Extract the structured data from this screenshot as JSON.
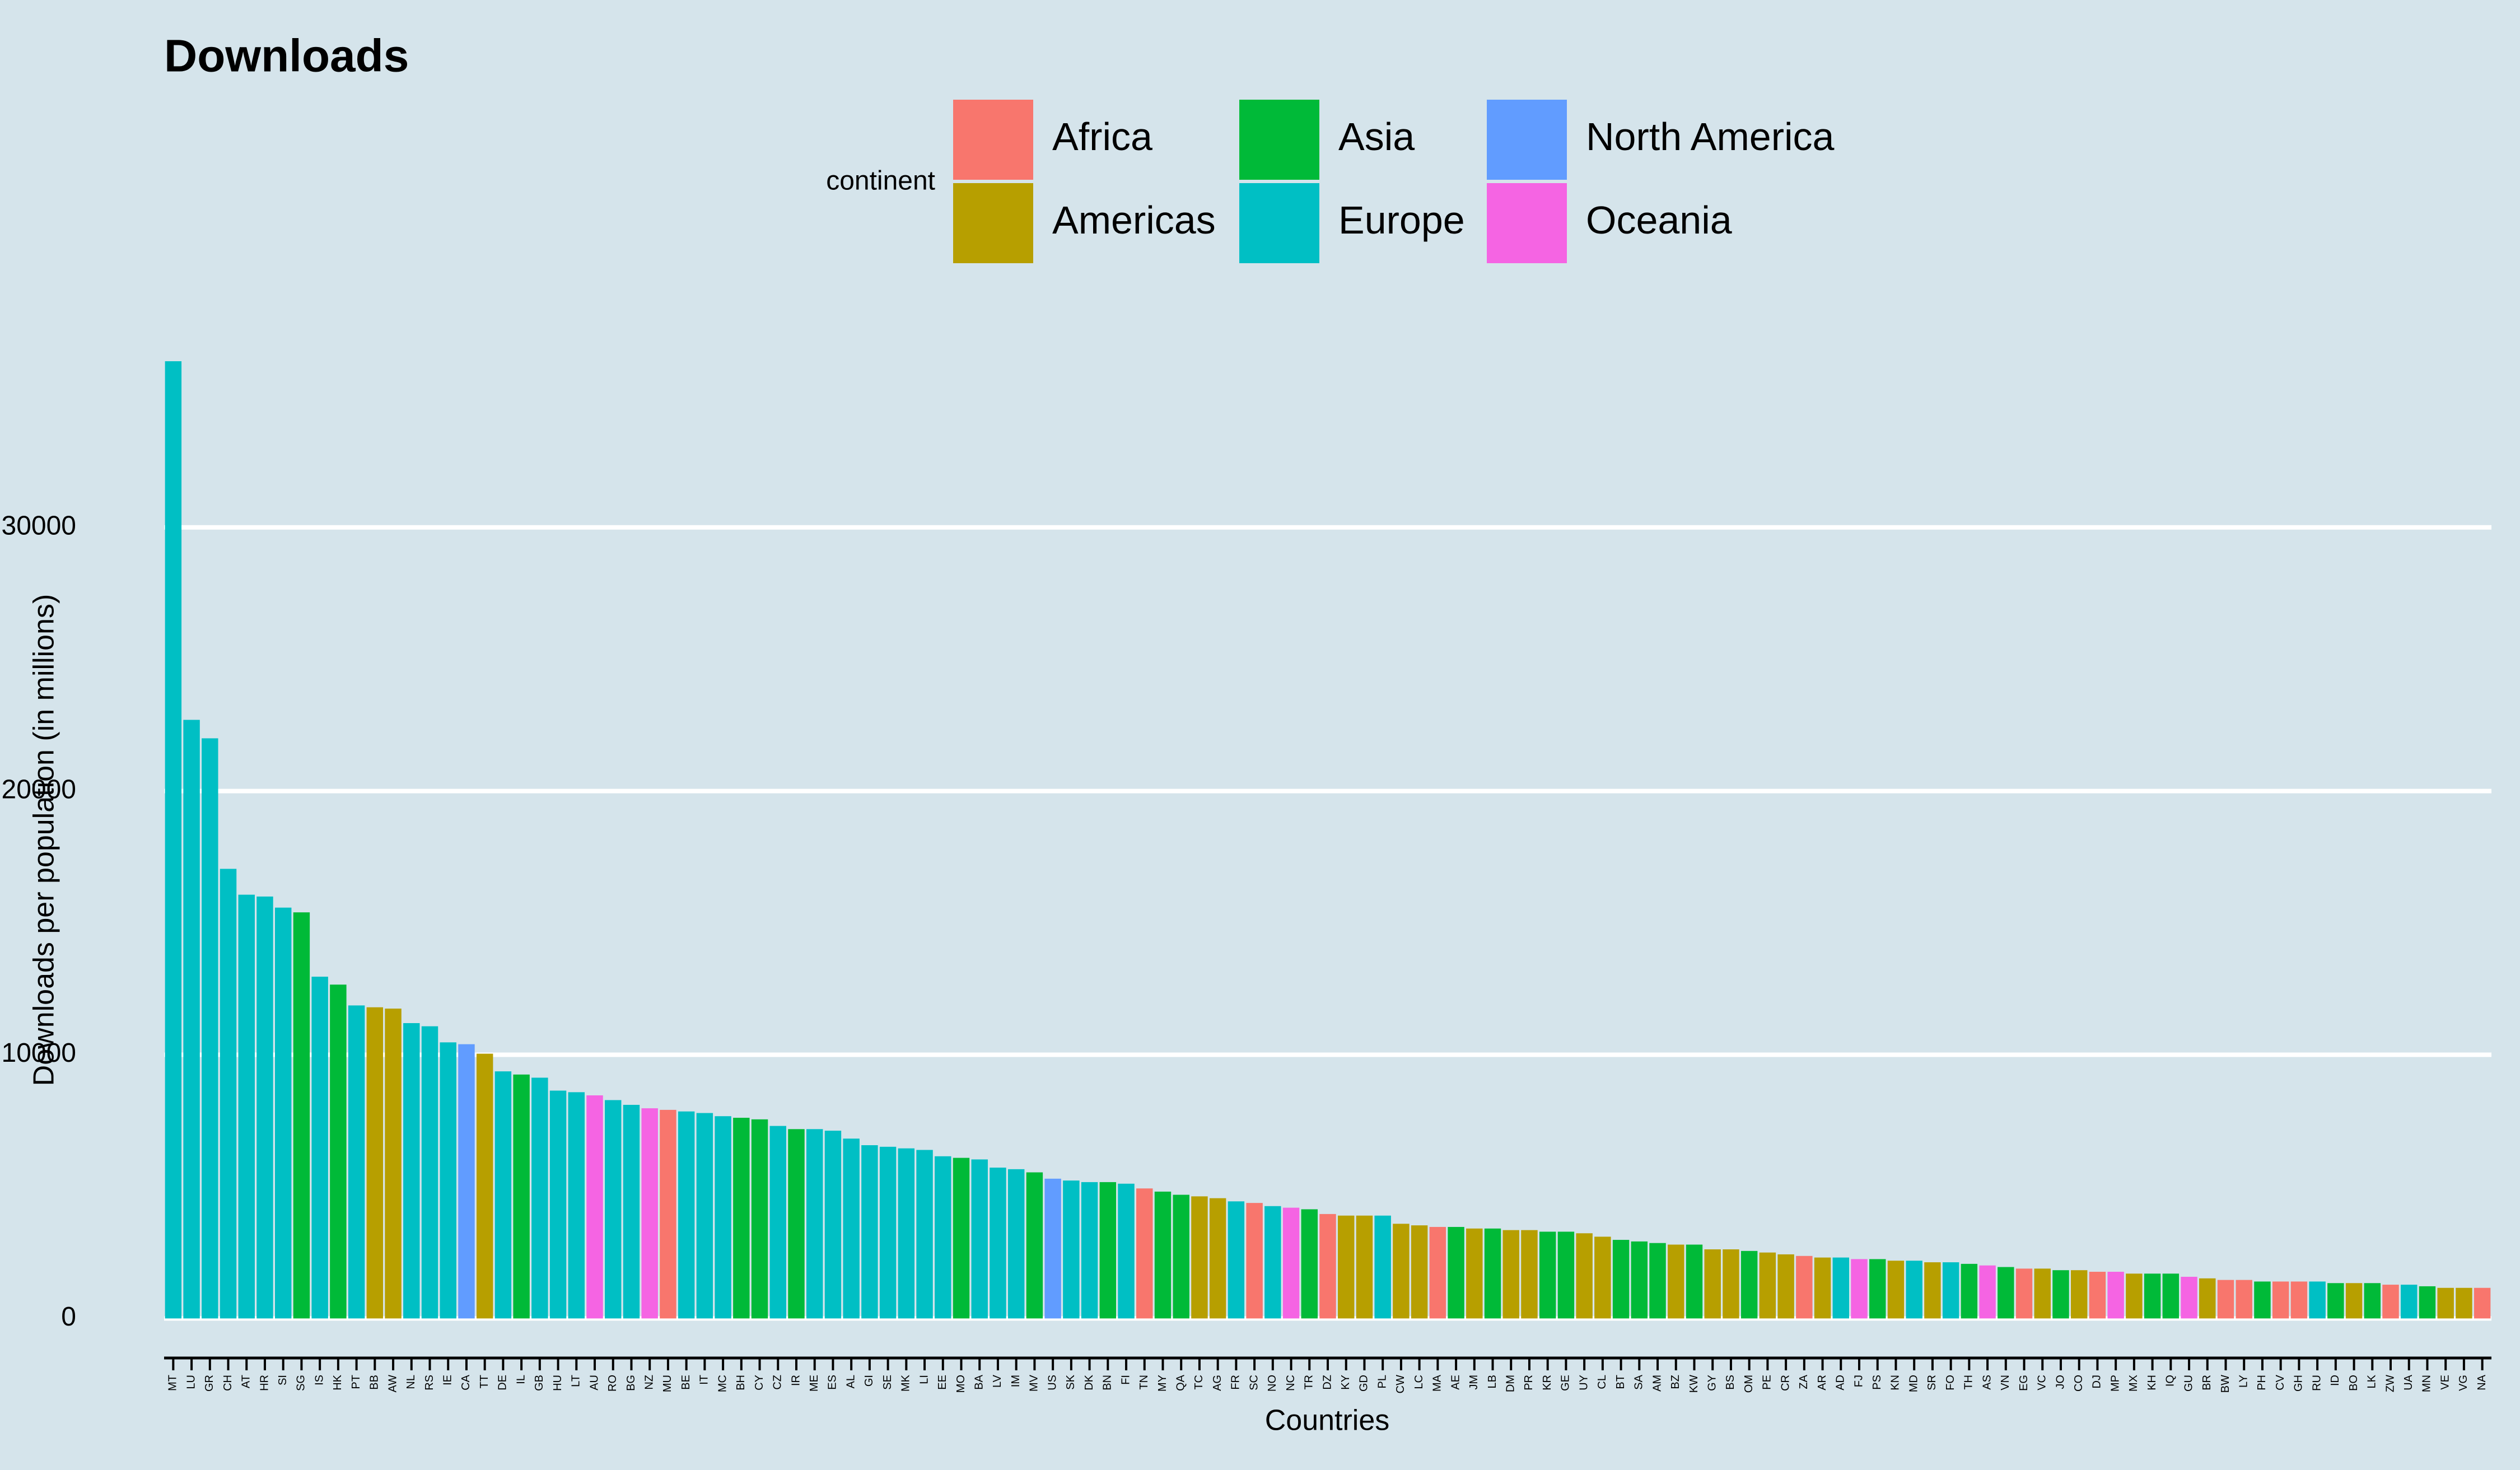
{
  "chart_data": {
    "type": "bar",
    "title": "Downloads",
    "x_label": "Countries",
    "y_label": "Downloads per population (in millions)",
    "legend": {
      "title": "continent",
      "items": [
        {
          "name": "Africa",
          "color": "#F8766D"
        },
        {
          "name": "Americas",
          "color": "#B79F00"
        },
        {
          "name": "Asia",
          "color": "#00BA38"
        },
        {
          "name": "Europe",
          "color": "#00BFC4"
        },
        {
          "name": "North America",
          "color": "#619CFF"
        },
        {
          "name": "Oceania",
          "color": "#F564E3"
        }
      ]
    },
    "categories": [
      "MT",
      "LU",
      "GR",
      "CH",
      "AT",
      "HR",
      "SI",
      "SG",
      "IS",
      "HK",
      "PT",
      "BB",
      "AW",
      "NL",
      "RS",
      "IE",
      "CA",
      "TT",
      "DE",
      "IL",
      "GB",
      "HU",
      "LT",
      "AU",
      "RO",
      "BG",
      "NZ",
      "MU",
      "BE",
      "IT",
      "MC",
      "BH",
      "CY",
      "CZ",
      "IR",
      "ME",
      "ES",
      "AL",
      "GI",
      "SE",
      "MK",
      "LI",
      "EE",
      "MO",
      "BA",
      "LV",
      "IM",
      "MV",
      "US",
      "SK",
      "DK",
      "BN",
      "FI",
      "TN",
      "MY",
      "QA",
      "TC",
      "AG",
      "FR",
      "SC",
      "NO",
      "NC",
      "TR",
      "DZ",
      "KY",
      "GD",
      "PL",
      "CW",
      "LC",
      "MA",
      "AE",
      "JM",
      "LB",
      "DM",
      "PR",
      "KR",
      "GE",
      "UY",
      "CL",
      "BT",
      "SA",
      "AM",
      "BZ",
      "KW",
      "GY",
      "BS",
      "OM",
      "PE",
      "CR",
      "ZA",
      "AR",
      "AD",
      "FJ",
      "PS",
      "KN",
      "MD",
      "SR",
      "FO",
      "TH",
      "AS",
      "VN",
      "EG",
      "VC",
      "JO",
      "CO",
      "DJ",
      "MP",
      "MX",
      "KH",
      "IQ",
      "GU",
      "BR",
      "BW",
      "LY",
      "PH",
      "CV",
      "GH",
      "RU",
      "ID",
      "BO",
      "LK",
      "ZW",
      "UA",
      "MN",
      "VE",
      "VG",
      "NA"
    ],
    "continent": [
      "Europe",
      "Europe",
      "Europe",
      "Europe",
      "Europe",
      "Europe",
      "Europe",
      "Asia",
      "Europe",
      "Asia",
      "Europe",
      "Americas",
      "Americas",
      "Europe",
      "Europe",
      "Europe",
      "North America",
      "Americas",
      "Europe",
      "Asia",
      "Europe",
      "Europe",
      "Europe",
      "Oceania",
      "Europe",
      "Europe",
      "Oceania",
      "Africa",
      "Europe",
      "Europe",
      "Europe",
      "Asia",
      "Asia",
      "Europe",
      "Asia",
      "Europe",
      "Europe",
      "Europe",
      "Europe",
      "Europe",
      "Europe",
      "Europe",
      "Europe",
      "Asia",
      "Europe",
      "Europe",
      "Europe",
      "Asia",
      "North America",
      "Europe",
      "Europe",
      "Asia",
      "Europe",
      "Africa",
      "Asia",
      "Asia",
      "Americas",
      "Americas",
      "Europe",
      "Africa",
      "Europe",
      "Oceania",
      "Asia",
      "Africa",
      "Americas",
      "Americas",
      "Europe",
      "Americas",
      "Americas",
      "Africa",
      "Asia",
      "Americas",
      "Asia",
      "Americas",
      "Americas",
      "Asia",
      "Asia",
      "Americas",
      "Americas",
      "Asia",
      "Asia",
      "Asia",
      "Americas",
      "Asia",
      "Americas",
      "Americas",
      "Asia",
      "Americas",
      "Americas",
      "Africa",
      "Americas",
      "Europe",
      "Oceania",
      "Asia",
      "Americas",
      "Europe",
      "Americas",
      "Europe",
      "Asia",
      "Oceania",
      "Asia",
      "Africa",
      "Americas",
      "Asia",
      "Americas",
      "Africa",
      "Oceania",
      "Americas",
      "Asia",
      "Asia",
      "Oceania",
      "Americas",
      "Africa",
      "Africa",
      "Asia",
      "Africa",
      "Africa",
      "Europe",
      "Asia",
      "Americas",
      "Asia",
      "Africa",
      "Europe",
      "Asia",
      "Americas",
      "Americas",
      "Africa"
    ],
    "values": [
      36300,
      22700,
      22000,
      17050,
      16070,
      16000,
      15580,
      15400,
      12960,
      12660,
      11870,
      11800,
      11750,
      11200,
      11080,
      10470,
      10400,
      10040,
      9370,
      9250,
      9130,
      8640,
      8580,
      8460,
      8280,
      8100,
      7970,
      7910,
      7850,
      7790,
      7670,
      7610,
      7550,
      7300,
      7180,
      7180,
      7120,
      6820,
      6570,
      6510,
      6450,
      6390,
      6150,
      6090,
      6030,
      5720,
      5660,
      5540,
      5300,
      5230,
      5170,
      5170,
      5110,
      4930,
      4810,
      4690,
      4630,
      4560,
      4440,
      4380,
      4260,
      4200,
      4140,
      3960,
      3900,
      3900,
      3900,
      3590,
      3530,
      3470,
      3470,
      3410,
      3410,
      3350,
      3350,
      3290,
      3290,
      3230,
      3100,
      2980,
      2920,
      2860,
      2800,
      2800,
      2620,
      2620,
      2560,
      2500,
      2430,
      2370,
      2310,
      2310,
      2250,
      2250,
      2190,
      2190,
      2130,
      2130,
      2070,
      2010,
      1950,
      1890,
      1890,
      1830,
      1830,
      1770,
      1770,
      1700,
      1700,
      1700,
      1580,
      1520,
      1460,
      1460,
      1400,
      1400,
      1400,
      1400,
      1340,
      1340,
      1340,
      1280,
      1280,
      1220,
      1160,
      1160,
      1160
    ],
    "ylim": [
      -1500,
      38000
    ],
    "yticks": [
      0,
      10000,
      20000,
      30000
    ],
    "grid": true
  }
}
